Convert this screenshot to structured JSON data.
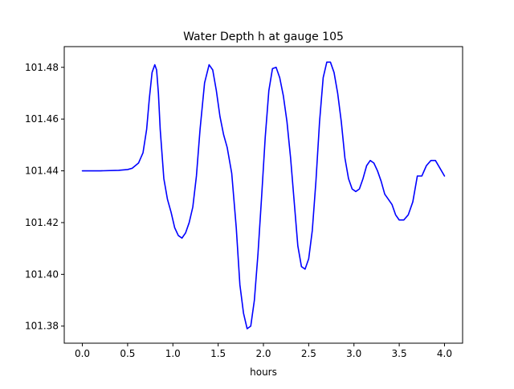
{
  "chart_data": {
    "type": "line",
    "title": "Water Depth h at gauge 105",
    "xlabel": "hours",
    "ylabel": "",
    "xlim": [
      -0.2,
      4.2
    ],
    "ylim": [
      101.3734,
      101.488
    ],
    "xticks": [
      0.0,
      0.5,
      1.0,
      1.5,
      2.0,
      2.5,
      3.0,
      3.5,
      4.0
    ],
    "xtick_labels": [
      "0.0",
      "0.5",
      "1.0",
      "1.5",
      "2.0",
      "2.5",
      "3.0",
      "3.5",
      "4.0"
    ],
    "yticks": [
      101.38,
      101.4,
      101.42,
      101.44,
      101.46,
      101.48
    ],
    "ytick_labels": [
      "101.38",
      "101.40",
      "101.42",
      "101.44",
      "101.46",
      "101.48"
    ],
    "grid": false,
    "series": [
      {
        "color": "#0000ff",
        "x": [
          0.0,
          0.2,
          0.4,
          0.5,
          0.55,
          0.62,
          0.67,
          0.71,
          0.74,
          0.77,
          0.8,
          0.82,
          0.84,
          0.86,
          0.9,
          0.94,
          0.98,
          1.02,
          1.06,
          1.1,
          1.14,
          1.18,
          1.22,
          1.26,
          1.3,
          1.35,
          1.4,
          1.44,
          1.48,
          1.52,
          1.56,
          1.6,
          1.65,
          1.7,
          1.74,
          1.78,
          1.82,
          1.86,
          1.9,
          1.94,
          1.98,
          2.02,
          2.06,
          2.1,
          2.14,
          2.18,
          2.22,
          2.26,
          2.3,
          2.34,
          2.38,
          2.42,
          2.46,
          2.5,
          2.54,
          2.58,
          2.62,
          2.66,
          2.7,
          2.74,
          2.78,
          2.82,
          2.86,
          2.9,
          2.94,
          2.98,
          3.02,
          3.06,
          3.1,
          3.14,
          3.18,
          3.22,
          3.26,
          3.3,
          3.34,
          3.38,
          3.42,
          3.46,
          3.5,
          3.55,
          3.6,
          3.65,
          3.7,
          3.75,
          3.8,
          3.85,
          3.9,
          3.95,
          4.0
        ],
        "y": [
          101.44,
          101.44,
          101.4402,
          101.4405,
          101.441,
          101.443,
          101.447,
          101.456,
          101.468,
          101.478,
          101.481,
          101.479,
          101.47,
          101.456,
          101.437,
          101.429,
          101.424,
          101.418,
          101.415,
          101.414,
          101.416,
          101.42,
          101.426,
          101.438,
          101.456,
          101.474,
          101.481,
          101.479,
          101.471,
          101.461,
          101.454,
          101.449,
          101.439,
          101.418,
          101.396,
          101.385,
          101.379,
          101.38,
          101.39,
          101.408,
          101.43,
          101.453,
          101.471,
          101.4795,
          101.48,
          101.476,
          101.469,
          101.459,
          101.445,
          101.428,
          101.411,
          101.403,
          101.402,
          101.406,
          101.417,
          101.436,
          101.459,
          101.476,
          101.482,
          101.482,
          101.478,
          101.47,
          101.459,
          101.445,
          101.437,
          101.433,
          101.432,
          101.433,
          101.437,
          101.442,
          101.444,
          101.443,
          101.44,
          101.436,
          101.431,
          101.429,
          101.427,
          101.423,
          101.421,
          101.421,
          101.423,
          101.428,
          101.438,
          101.438,
          101.442,
          101.444,
          101.444,
          101.441,
          101.438
        ]
      }
    ]
  }
}
